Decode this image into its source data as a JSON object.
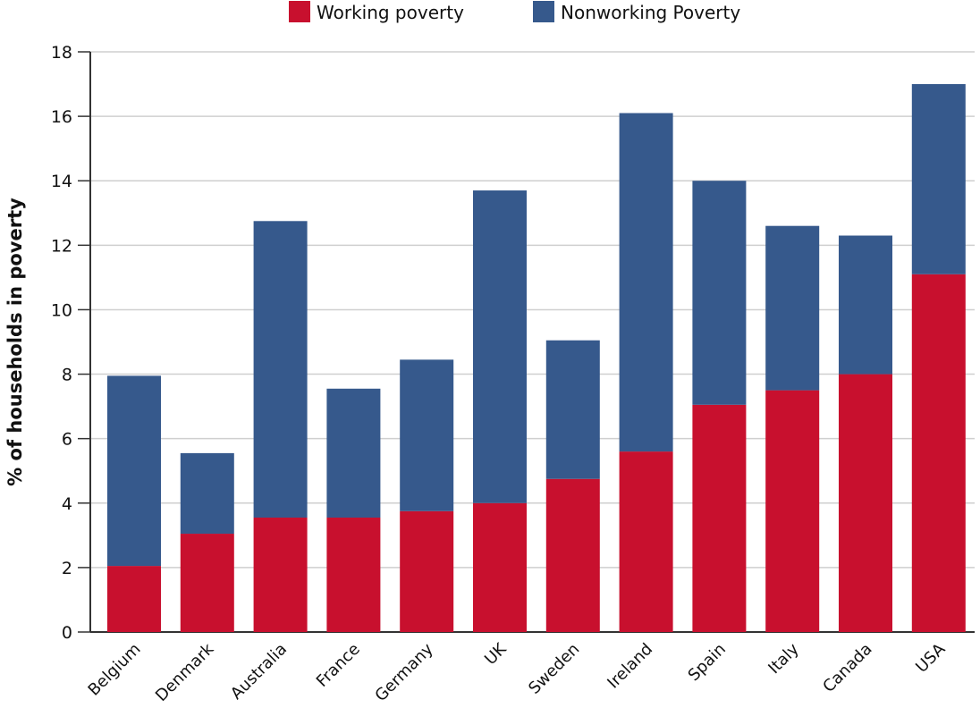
{
  "chart_data": {
    "type": "bar",
    "stacked": true,
    "ylabel": "% of households in poverty",
    "xlabel": "",
    "ylim": [
      0,
      18
    ],
    "yticks": [
      0,
      2,
      4,
      6,
      8,
      10,
      12,
      14,
      16,
      18
    ],
    "grid": true,
    "legend": "top-center",
    "categories": [
      "Belgium",
      "Denmark",
      "Australia",
      "France",
      "Germany",
      "UK",
      "Sweden",
      "Ireland",
      "Spain",
      "Italy",
      "Canada",
      "USA"
    ],
    "series": [
      {
        "name": "Working poverty",
        "color": "#c8102e",
        "values": [
          2.05,
          3.05,
          3.55,
          3.55,
          3.75,
          4.0,
          4.75,
          5.6,
          7.05,
          7.5,
          8.0,
          11.1
        ]
      },
      {
        "name": "Nonworking Poverty",
        "color": "#36598c",
        "values": [
          5.9,
          2.5,
          9.2,
          4.0,
          4.7,
          9.7,
          4.3,
          10.5,
          6.95,
          5.1,
          4.3,
          5.9
        ]
      }
    ]
  }
}
